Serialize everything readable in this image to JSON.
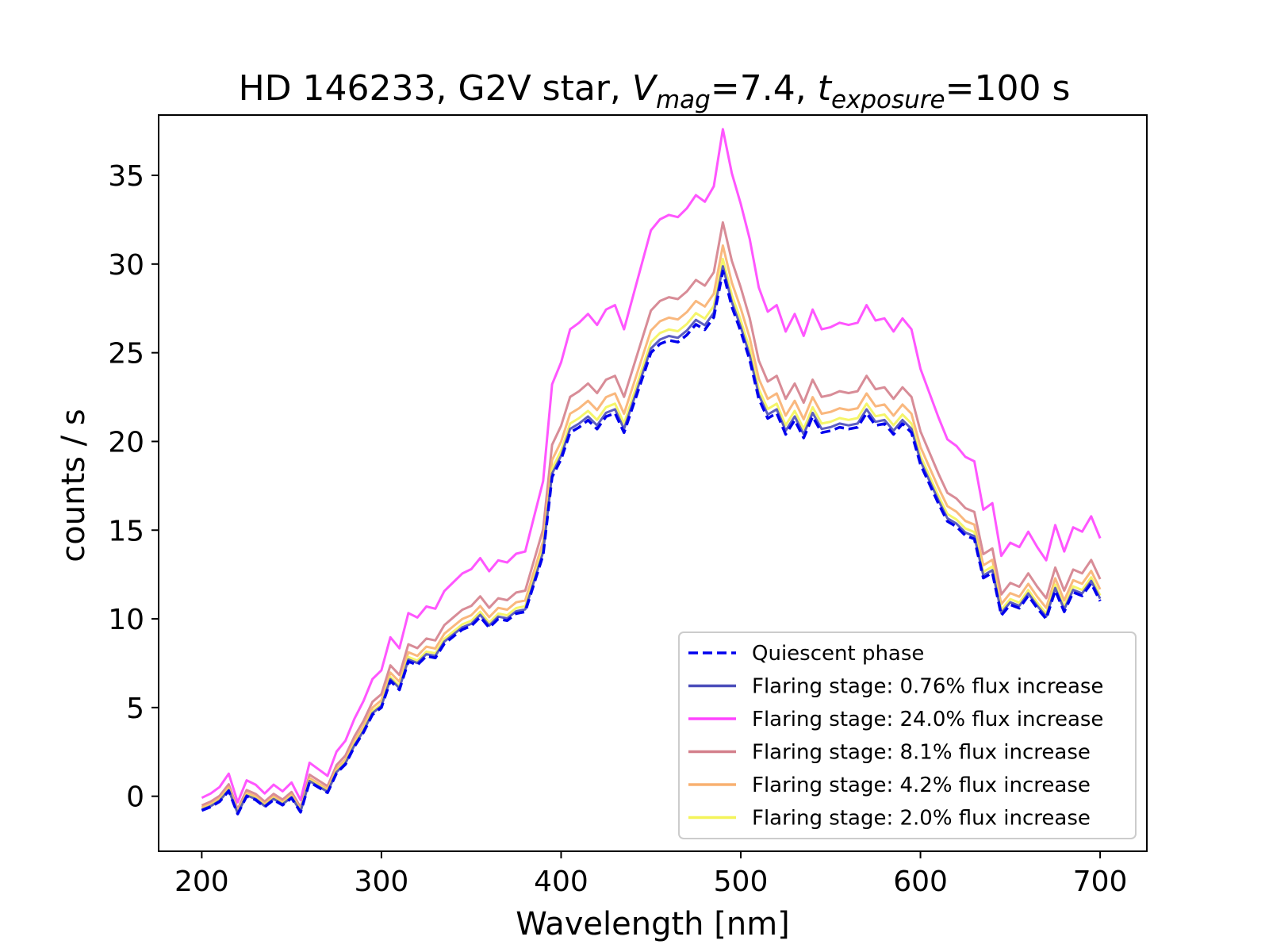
{
  "chart_data": {
    "type": "line",
    "title_parts": {
      "prefix": "HD 146233, G2V star, ",
      "v_var": "V",
      "v_sub": "mag",
      "v_value": "=7.4, ",
      "t_var": "t",
      "t_sub": "exposure",
      "t_value": "=100 s"
    },
    "xlabel": "Wavelength [nm]",
    "ylabel": "counts / s",
    "xlim": [
      176,
      726
    ],
    "ylim": [
      -3.1,
      38.4
    ],
    "xticks": [
      200,
      300,
      400,
      500,
      600,
      700
    ],
    "yticks": [
      0,
      5,
      10,
      15,
      20,
      25,
      30,
      35
    ],
    "legend_position": "lower-right",
    "quiescent": {
      "x": [
        200,
        205,
        210,
        215,
        220,
        225,
        230,
        235,
        240,
        245,
        250,
        255,
        260,
        265,
        270,
        275,
        280,
        285,
        290,
        295,
        300,
        305,
        310,
        315,
        320,
        325,
        330,
        335,
        340,
        345,
        350,
        355,
        360,
        365,
        370,
        375,
        380,
        385,
        390,
        395,
        400,
        405,
        410,
        415,
        420,
        425,
        430,
        435,
        440,
        445,
        450,
        455,
        460,
        465,
        470,
        475,
        480,
        485,
        490,
        495,
        500,
        505,
        510,
        515,
        520,
        525,
        530,
        535,
        540,
        545,
        550,
        555,
        560,
        565,
        570,
        575,
        580,
        585,
        590,
        595,
        600,
        605,
        610,
        615,
        620,
        625,
        630,
        635,
        640,
        645,
        650,
        655,
        660,
        665,
        670,
        675,
        680,
        685,
        690,
        695,
        700
      ],
      "y": [
        -0.8,
        -0.6,
        -0.3,
        0.3,
        -1.0,
        0.0,
        -0.2,
        -0.6,
        -0.2,
        -0.5,
        -0.1,
        -0.9,
        0.8,
        0.5,
        0.2,
        1.3,
        1.8,
        2.8,
        3.6,
        4.6,
        5.0,
        6.5,
        6.0,
        7.6,
        7.4,
        7.9,
        7.8,
        8.6,
        9.0,
        9.4,
        9.6,
        10.1,
        9.5,
        10.0,
        9.9,
        10.3,
        10.4,
        12.0,
        13.6,
        18.0,
        19.0,
        20.5,
        20.8,
        21.2,
        20.7,
        21.4,
        21.6,
        20.5,
        22.0,
        23.5,
        25.0,
        25.5,
        25.7,
        25.6,
        26.0,
        26.6,
        26.3,
        27.0,
        29.6,
        27.6,
        26.2,
        24.6,
        22.4,
        21.3,
        21.6,
        20.4,
        21.2,
        20.2,
        21.4,
        20.5,
        20.6,
        20.8,
        20.7,
        20.8,
        21.6,
        20.9,
        21.0,
        20.4,
        21.0,
        20.5,
        18.7,
        17.6,
        16.5,
        15.5,
        15.2,
        14.7,
        14.5,
        12.3,
        12.6,
        10.2,
        10.8,
        10.6,
        11.3,
        10.6,
        10.0,
        11.6,
        10.4,
        11.5,
        11.3,
        12.0,
        11.0
      ]
    },
    "series": [
      {
        "name": "Quiescent phase",
        "color": "#0000ee",
        "style": "dashed",
        "factor": 1.0,
        "offset": 0.0
      },
      {
        "name": "Flaring stage: 0.76% flux increase",
        "color": "#4a4dba",
        "style": "solid",
        "factor": 1.0076,
        "offset": 0.05
      },
      {
        "name": "Flaring stage: 24.0% flux increase",
        "color": "#ff44ff",
        "style": "solid",
        "factor": 1.24,
        "offset": 0.9
      },
      {
        "name": "Flaring stage: 8.1% flux increase",
        "color": "#d4808c",
        "style": "solid",
        "factor": 1.081,
        "offset": 0.35
      },
      {
        "name": "Flaring stage: 4.2% flux increase",
        "color": "#f8b070",
        "style": "solid",
        "factor": 1.042,
        "offset": 0.2
      },
      {
        "name": "Flaring stage: 2.0% flux increase",
        "color": "#f4f45a",
        "style": "solid",
        "factor": 1.02,
        "offset": 0.1
      }
    ]
  }
}
